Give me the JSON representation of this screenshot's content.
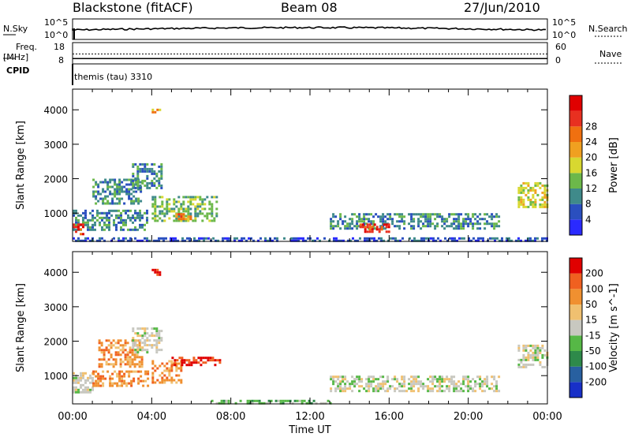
{
  "header": {
    "radar": "Blackstone (fitACF)",
    "beam": "Beam 08",
    "date": "27/Jun/2010"
  },
  "top_panels": {
    "nsky_label": "N.Sky",
    "nsearch_label": "N.Search",
    "freq_label_1": "Freq.",
    "freq_label_2": "[MHz]",
    "nave_label": "Nave",
    "cpid_label": "CPID",
    "cpid_value": "themis (tau) 3310",
    "noise_left_ticks": [
      "10^5",
      "10^0"
    ],
    "noise_right_ticks": [
      "10^5",
      "10^0"
    ],
    "freq_ticks": [
      "18",
      "8"
    ],
    "nave_ticks": [
      "60",
      "0"
    ],
    "freq_mhz": 10.5,
    "nave": 28
  },
  "chart_data": [
    {
      "type": "heatmap",
      "panel": "power",
      "xlabel": "",
      "ylabel": "Slant Range [km]",
      "xlim_hours": [
        0,
        24
      ],
      "ylim_km": [
        180,
        4600
      ],
      "yticks": [
        1000,
        2000,
        3000,
        4000
      ],
      "colorbar": {
        "label": "Power [dB]",
        "ticks": [
          "4",
          "8",
          "12",
          "16",
          "20",
          "24",
          "28"
        ],
        "colors": [
          "#2a2aff",
          "#2a4fbf",
          "#3f8a8a",
          "#6cb84a",
          "#d8d830",
          "#f0a020",
          "#f07010",
          "#e83020",
          "#e00000"
        ]
      },
      "features": [
        {
          "t0": 0.0,
          "t1": 3.8,
          "r0": 550,
          "r1": 1100,
          "level": 2
        },
        {
          "t0": 1.0,
          "t1": 3.5,
          "r0": 1250,
          "r1": 2000,
          "level": 2
        },
        {
          "t0": 3.0,
          "t1": 4.5,
          "r0": 1700,
          "r1": 2450,
          "level": 2
        },
        {
          "t0": 4.0,
          "t1": 7.3,
          "r0": 800,
          "r1": 1500,
          "level": 3
        },
        {
          "t0": 0.0,
          "t1": 0.5,
          "r0": 400,
          "r1": 700,
          "level": 7
        },
        {
          "t0": 5.2,
          "t1": 6.0,
          "r0": 800,
          "r1": 1000,
          "level": 6
        },
        {
          "t0": 13.0,
          "t1": 21.5,
          "r0": 550,
          "r1": 1000,
          "level": 2
        },
        {
          "t0": 14.5,
          "t1": 16.0,
          "r0": 450,
          "r1": 700,
          "level": 7
        },
        {
          "t0": 22.5,
          "t1": 24.0,
          "r0": 1200,
          "r1": 1900,
          "level": 4
        },
        {
          "t0": 0.0,
          "t1": 24.0,
          "r0": 180,
          "r1": 300,
          "level": 1
        },
        {
          "t0": 4.0,
          "t1": 4.4,
          "r0": 3950,
          "r1": 4100,
          "level": 5
        }
      ]
    },
    {
      "type": "heatmap",
      "panel": "velocity",
      "xlabel": "Time UT",
      "ylabel": "Slant Range [km]",
      "xlim_hours": [
        0,
        24
      ],
      "ylim_km": [
        180,
        4600
      ],
      "yticks": [
        1000,
        2000,
        3000,
        4000
      ],
      "xticks": [
        "00:00",
        "04:00",
        "08:00",
        "12:00",
        "16:00",
        "20:00",
        "00:00"
      ],
      "colorbar": {
        "label": "Velocity [m s^-1]",
        "ticks": [
          "200",
          "100",
          "50",
          "15",
          "-15",
          "-50",
          "-100",
          "-200"
        ],
        "colors": [
          "#1830c8",
          "#2860a0",
          "#2e8a4a",
          "#56b846",
          "#c8c8c0",
          "#f0c070",
          "#f09030",
          "#f06020",
          "#e00000"
        ]
      },
      "features": [
        {
          "t0": 0.0,
          "t1": 1.0,
          "r0": 550,
          "r1": 1100,
          "level": 4
        },
        {
          "t0": 1.0,
          "t1": 3.8,
          "r0": 700,
          "r1": 1150,
          "level": 6
        },
        {
          "t0": 1.3,
          "t1": 3.5,
          "r0": 1250,
          "r1": 2050,
          "level": 6
        },
        {
          "t0": 3.0,
          "t1": 4.5,
          "r0": 1700,
          "r1": 2400,
          "level": 4
        },
        {
          "t0": 4.0,
          "t1": 5.5,
          "r0": 800,
          "r1": 1450,
          "level": 6
        },
        {
          "t0": 5.0,
          "t1": 7.4,
          "r0": 1300,
          "r1": 1550,
          "level": 8
        },
        {
          "t0": 13.0,
          "t1": 21.5,
          "r0": 550,
          "r1": 1000,
          "level": 4
        },
        {
          "t0": 22.5,
          "t1": 24.0,
          "r0": 1250,
          "r1": 1900,
          "level": 4
        },
        {
          "t0": 7.0,
          "t1": 13.0,
          "r0": 180,
          "r1": 300,
          "level": 3
        },
        {
          "t0": 4.0,
          "t1": 4.4,
          "r0": 3950,
          "r1": 4100,
          "level": 8
        }
      ]
    }
  ]
}
